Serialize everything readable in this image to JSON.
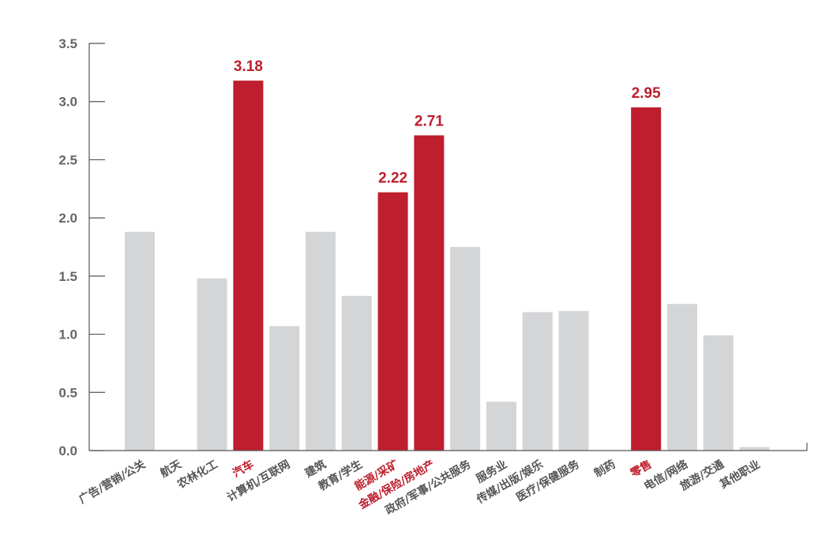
{
  "colors": {
    "bar": "#d4d5d7",
    "highlight": "#be1e2d",
    "axis": "#555555",
    "tick_text": "#666666",
    "label_text": "#555555"
  },
  "chart_data": {
    "type": "bar",
    "categories": [
      "广告/营销/公关",
      "航天",
      "农林化工",
      "汽车",
      "计算机/互联网",
      "建筑",
      "教育/学生",
      "能源/采矿",
      "金融/保险/房地产",
      "政府/军事/公共服务",
      "服务业",
      "传媒/出版/娱乐",
      "医疗/保健服务",
      "制药",
      "零售",
      "电信/网络",
      "旅游/交通",
      "其他职业"
    ],
    "values": [
      1.88,
      0,
      1.48,
      3.18,
      1.07,
      1.88,
      1.33,
      2.22,
      2.71,
      1.75,
      0.42,
      1.19,
      1.2,
      0,
      2.95,
      1.26,
      0.99,
      0.03
    ],
    "highlighted": [
      false,
      false,
      false,
      true,
      false,
      false,
      false,
      true,
      true,
      false,
      false,
      false,
      false,
      false,
      true,
      false,
      false,
      false
    ],
    "data_labels": [
      "",
      "",
      "",
      "3.18",
      "",
      "",
      "",
      "2.22",
      "2.71",
      "",
      "",
      "",
      "",
      "",
      "2.95",
      "",
      "",
      ""
    ],
    "yticks": [
      "0.0",
      "0.5",
      "1.0",
      "1.5",
      "2.0",
      "2.5",
      "3.0",
      "3.5"
    ],
    "ylim": [
      0,
      3.5
    ],
    "title": "",
    "xlabel": "",
    "ylabel": "",
    "grid": false
  }
}
